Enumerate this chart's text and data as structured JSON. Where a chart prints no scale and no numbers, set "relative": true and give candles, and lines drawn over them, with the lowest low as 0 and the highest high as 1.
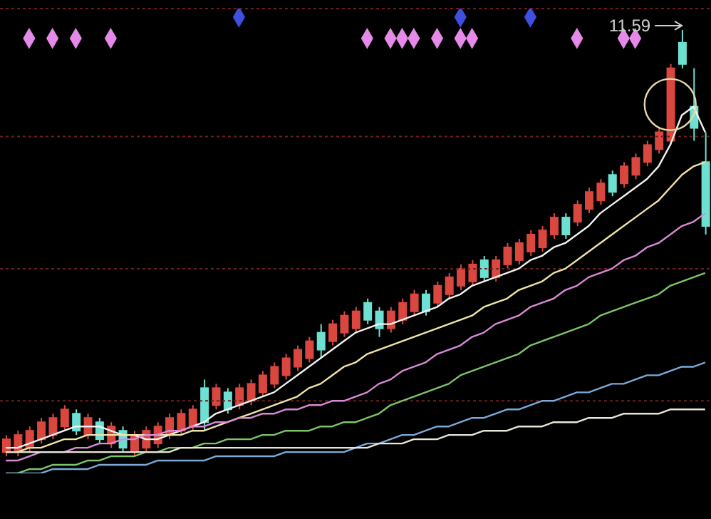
{
  "chart_data": {
    "type": "candlestick",
    "relative": true,
    "tick_labels": false,
    "categories": [
      null,
      null,
      null,
      null,
      null,
      null,
      null,
      null,
      null,
      null,
      null,
      null,
      null,
      null,
      null,
      null,
      null,
      null,
      null,
      null,
      null,
      null,
      null,
      null,
      null,
      null,
      null,
      null,
      null,
      null,
      null,
      null,
      null,
      null,
      null,
      null,
      null,
      null,
      null,
      null,
      null,
      null,
      null,
      null,
      null,
      null,
      null,
      null,
      null,
      null,
      null,
      null,
      null,
      null,
      null,
      null,
      null,
      null,
      null,
      null,
      null
    ],
    "ohlc": [
      [
        0.01,
        0.05,
        0.0,
        0.04
      ],
      [
        0.01,
        0.06,
        0.0,
        0.05
      ],
      [
        0.02,
        0.07,
        0.01,
        0.06
      ],
      [
        0.04,
        0.09,
        0.03,
        0.08
      ],
      [
        0.05,
        0.1,
        0.04,
        0.09
      ],
      [
        0.07,
        0.12,
        0.06,
        0.11
      ],
      [
        0.1,
        0.11,
        0.05,
        0.06
      ],
      [
        0.05,
        0.1,
        0.04,
        0.09
      ],
      [
        0.08,
        0.09,
        0.03,
        0.04
      ],
      [
        0.03,
        0.08,
        0.02,
        0.07
      ],
      [
        0.06,
        0.07,
        0.01,
        0.02
      ],
      [
        0.01,
        0.06,
        0.0,
        0.05
      ],
      [
        0.02,
        0.07,
        0.01,
        0.06
      ],
      [
        0.03,
        0.08,
        0.02,
        0.07
      ],
      [
        0.05,
        0.1,
        0.04,
        0.09
      ],
      [
        0.06,
        0.11,
        0.05,
        0.1
      ],
      [
        0.07,
        0.12,
        0.06,
        0.11
      ],
      [
        0.16,
        0.18,
        0.06,
        0.08
      ],
      [
        0.12,
        0.17,
        0.11,
        0.16
      ],
      [
        0.15,
        0.16,
        0.1,
        0.11
      ],
      [
        0.12,
        0.17,
        0.11,
        0.16
      ],
      [
        0.13,
        0.18,
        0.12,
        0.17
      ],
      [
        0.15,
        0.2,
        0.14,
        0.19
      ],
      [
        0.17,
        0.22,
        0.16,
        0.21
      ],
      [
        0.19,
        0.24,
        0.18,
        0.23
      ],
      [
        0.21,
        0.26,
        0.2,
        0.25
      ],
      [
        0.23,
        0.28,
        0.22,
        0.27
      ],
      [
        0.29,
        0.31,
        0.23,
        0.25
      ],
      [
        0.27,
        0.32,
        0.26,
        0.31
      ],
      [
        0.29,
        0.34,
        0.28,
        0.33
      ],
      [
        0.3,
        0.35,
        0.29,
        0.34
      ],
      [
        0.36,
        0.37,
        0.31,
        0.32
      ],
      [
        0.34,
        0.35,
        0.28,
        0.3
      ],
      [
        0.3,
        0.35,
        0.29,
        0.34
      ],
      [
        0.32,
        0.37,
        0.31,
        0.36
      ],
      [
        0.34,
        0.39,
        0.33,
        0.38
      ],
      [
        0.38,
        0.39,
        0.33,
        0.34
      ],
      [
        0.36,
        0.41,
        0.35,
        0.4
      ],
      [
        0.38,
        0.43,
        0.37,
        0.42
      ],
      [
        0.4,
        0.45,
        0.39,
        0.44
      ],
      [
        0.41,
        0.46,
        0.4,
        0.45
      ],
      [
        0.46,
        0.47,
        0.41,
        0.42
      ],
      [
        0.42,
        0.47,
        0.41,
        0.46
      ],
      [
        0.45,
        0.5,
        0.44,
        0.49
      ],
      [
        0.46,
        0.51,
        0.45,
        0.5
      ],
      [
        0.48,
        0.53,
        0.47,
        0.52
      ],
      [
        0.49,
        0.54,
        0.48,
        0.53
      ],
      [
        0.52,
        0.57,
        0.51,
        0.56
      ],
      [
        0.56,
        0.57,
        0.51,
        0.52
      ],
      [
        0.55,
        0.6,
        0.54,
        0.59
      ],
      [
        0.58,
        0.63,
        0.57,
        0.62
      ],
      [
        0.6,
        0.65,
        0.59,
        0.64
      ],
      [
        0.66,
        0.67,
        0.61,
        0.62
      ],
      [
        0.64,
        0.69,
        0.63,
        0.68
      ],
      [
        0.66,
        0.71,
        0.65,
        0.7
      ],
      [
        0.69,
        0.74,
        0.68,
        0.73
      ],
      [
        0.72,
        0.77,
        0.71,
        0.76
      ],
      [
        0.74,
        0.92,
        0.73,
        0.91
      ],
      [
        0.97,
        1.0,
        0.91,
        0.92
      ],
      [
        0.82,
        0.91,
        0.74,
        0.77
      ],
      [
        0.69,
        0.76,
        0.52,
        0.54
      ]
    ],
    "colors": [
      "#d9473f",
      "#d9473f",
      "#d9473f",
      "#d9473f",
      "#d9473f",
      "#d9473f",
      "#6ee0d2",
      "#d9473f",
      "#6ee0d2",
      "#d9473f",
      "#6ee0d2",
      "#d9473f",
      "#d9473f",
      "#d9473f",
      "#d9473f",
      "#d9473f",
      "#d9473f",
      "#6ee0d2",
      "#d9473f",
      "#6ee0d2",
      "#d9473f",
      "#d9473f",
      "#d9473f",
      "#d9473f",
      "#d9473f",
      "#d9473f",
      "#d9473f",
      "#6ee0d2",
      "#d9473f",
      "#d9473f",
      "#d9473f",
      "#6ee0d2",
      "#6ee0d2",
      "#d9473f",
      "#d9473f",
      "#d9473f",
      "#6ee0d2",
      "#d9473f",
      "#d9473f",
      "#d9473f",
      "#d9473f",
      "#6ee0d2",
      "#d9473f",
      "#d9473f",
      "#d9473f",
      "#d9473f",
      "#d9473f",
      "#d9473f",
      "#6ee0d2",
      "#d9473f",
      "#d9473f",
      "#d9473f",
      "#6ee0d2",
      "#d9473f",
      "#d9473f",
      "#d9473f",
      "#d9473f",
      "#d9473f",
      "#6ee0d2",
      "#6ee0d2",
      "#6ee0d2"
    ],
    "series": [
      {
        "type": "line",
        "color": "#f2f2f2",
        "values": [
          0.02,
          0.02,
          0.03,
          0.04,
          0.05,
          0.06,
          0.07,
          0.07,
          0.07,
          0.06,
          0.05,
          0.05,
          0.04,
          0.04,
          0.05,
          0.06,
          0.07,
          0.08,
          0.1,
          0.11,
          0.12,
          0.13,
          0.14,
          0.15,
          0.17,
          0.19,
          0.21,
          0.23,
          0.25,
          0.27,
          0.29,
          0.3,
          0.31,
          0.31,
          0.32,
          0.33,
          0.34,
          0.35,
          0.37,
          0.38,
          0.4,
          0.41,
          0.42,
          0.43,
          0.44,
          0.46,
          0.47,
          0.49,
          0.5,
          0.52,
          0.54,
          0.57,
          0.59,
          0.61,
          0.63,
          0.65,
          0.68,
          0.73,
          0.8,
          0.82,
          0.76
        ]
      },
      {
        "type": "line",
        "color": "#f0e4a8",
        "values": [
          0.01,
          0.01,
          0.02,
          0.02,
          0.03,
          0.04,
          0.04,
          0.05,
          0.05,
          0.05,
          0.05,
          0.05,
          0.05,
          0.05,
          0.05,
          0.05,
          0.06,
          0.06,
          0.07,
          0.08,
          0.09,
          0.1,
          0.11,
          0.12,
          0.13,
          0.14,
          0.16,
          0.17,
          0.19,
          0.21,
          0.22,
          0.24,
          0.25,
          0.26,
          0.27,
          0.28,
          0.29,
          0.3,
          0.31,
          0.32,
          0.33,
          0.35,
          0.36,
          0.37,
          0.39,
          0.4,
          0.41,
          0.43,
          0.44,
          0.46,
          0.48,
          0.5,
          0.52,
          0.54,
          0.56,
          0.58,
          0.6,
          0.63,
          0.66,
          0.68,
          0.69
        ]
      },
      {
        "type": "line",
        "color": "#d98ad6",
        "values": [
          -0.01,
          -0.01,
          0.0,
          0.01,
          0.01,
          0.01,
          0.02,
          0.02,
          0.03,
          0.03,
          0.04,
          0.04,
          0.05,
          0.05,
          0.06,
          0.06,
          0.07,
          0.07,
          0.08,
          0.08,
          0.09,
          0.09,
          0.1,
          0.1,
          0.11,
          0.11,
          0.12,
          0.12,
          0.13,
          0.13,
          0.14,
          0.15,
          0.17,
          0.18,
          0.2,
          0.21,
          0.22,
          0.24,
          0.25,
          0.26,
          0.28,
          0.29,
          0.31,
          0.32,
          0.33,
          0.35,
          0.36,
          0.37,
          0.39,
          0.4,
          0.42,
          0.43,
          0.44,
          0.46,
          0.47,
          0.49,
          0.5,
          0.52,
          0.54,
          0.55,
          0.57
        ]
      },
      {
        "type": "line",
        "color": "#7cc46a",
        "values": [
          -0.04,
          -0.04,
          -0.03,
          -0.03,
          -0.02,
          -0.02,
          -0.02,
          -0.01,
          -0.01,
          0.0,
          0.0,
          0.0,
          0.01,
          0.01,
          0.02,
          0.02,
          0.02,
          0.03,
          0.03,
          0.04,
          0.04,
          0.04,
          0.05,
          0.05,
          0.06,
          0.06,
          0.06,
          0.07,
          0.07,
          0.08,
          0.08,
          0.09,
          0.1,
          0.12,
          0.13,
          0.14,
          0.15,
          0.16,
          0.17,
          0.19,
          0.2,
          0.21,
          0.22,
          0.23,
          0.24,
          0.26,
          0.27,
          0.28,
          0.29,
          0.3,
          0.31,
          0.33,
          0.34,
          0.35,
          0.36,
          0.37,
          0.38,
          0.4,
          0.41,
          0.42,
          0.43
        ]
      },
      {
        "type": "line",
        "color": "#7aaad8",
        "values": [
          -0.04,
          -0.04,
          -0.04,
          -0.04,
          -0.03,
          -0.03,
          -0.03,
          -0.03,
          -0.02,
          -0.02,
          -0.02,
          -0.02,
          -0.02,
          -0.01,
          -0.01,
          -0.01,
          -0.01,
          -0.01,
          0.0,
          0.0,
          0.0,
          0.0,
          0.0,
          0.0,
          0.01,
          0.01,
          0.01,
          0.01,
          0.01,
          0.01,
          0.02,
          0.03,
          0.03,
          0.04,
          0.05,
          0.05,
          0.06,
          0.07,
          0.07,
          0.08,
          0.09,
          0.09,
          0.1,
          0.11,
          0.11,
          0.12,
          0.13,
          0.13,
          0.14,
          0.15,
          0.15,
          0.16,
          0.17,
          0.17,
          0.18,
          0.19,
          0.19,
          0.2,
          0.21,
          0.21,
          0.22
        ]
      },
      {
        "type": "line",
        "color": "#e8e6d6",
        "values": [
          0.01,
          0.01,
          0.01,
          0.01,
          0.01,
          0.01,
          0.01,
          0.01,
          0.01,
          0.01,
          0.01,
          0.01,
          0.01,
          0.01,
          0.01,
          0.02,
          0.02,
          0.02,
          0.02,
          0.02,
          0.02,
          0.02,
          0.02,
          0.02,
          0.02,
          0.02,
          0.02,
          0.02,
          0.02,
          0.02,
          0.02,
          0.02,
          0.03,
          0.03,
          0.03,
          0.04,
          0.04,
          0.04,
          0.05,
          0.05,
          0.05,
          0.06,
          0.06,
          0.06,
          0.07,
          0.07,
          0.07,
          0.08,
          0.08,
          0.08,
          0.09,
          0.09,
          0.09,
          0.1,
          0.1,
          0.1,
          0.1,
          0.11,
          0.11,
          0.11,
          0.11
        ]
      },
      {
        "type": "scatter",
        "color": "#e58ae8",
        "marker": "diamond",
        "values": [
          null,
          null,
          0.98,
          null,
          0.98,
          null,
          0.98,
          null,
          null,
          0.98,
          null,
          null,
          null,
          null,
          null,
          null,
          null,
          null,
          null,
          null,
          null,
          null,
          null,
          null,
          null,
          null,
          null,
          null,
          null,
          null,
          null,
          0.98,
          null,
          0.98,
          0.98,
          0.98,
          null,
          0.98,
          null,
          0.98,
          0.98,
          null,
          null,
          null,
          null,
          null,
          null,
          null,
          null,
          0.98,
          null,
          null,
          null,
          0.98,
          0.98,
          null,
          null,
          null,
          null,
          null,
          null
        ]
      },
      {
        "type": "scatter",
        "color": "#3f4fe0",
        "marker": "diamond",
        "values": [
          null,
          null,
          null,
          null,
          null,
          null,
          null,
          null,
          null,
          null,
          null,
          null,
          null,
          null,
          null,
          null,
          null,
          null,
          null,
          null,
          1.03,
          null,
          null,
          null,
          null,
          null,
          null,
          null,
          null,
          null,
          null,
          null,
          null,
          null,
          null,
          null,
          null,
          null,
          null,
          1.03,
          null,
          null,
          null,
          null,
          null,
          1.03,
          null,
          null,
          null,
          null,
          null,
          null,
          null,
          null,
          null,
          null,
          null,
          null,
          null,
          null,
          null
        ]
      }
    ],
    "ref_lines": [
      {
        "axis": "y",
        "value": 1.05,
        "color": "#6e1f1f",
        "line_style": "dotted"
      },
      {
        "axis": "y",
        "value": 0.75,
        "color": "#6e1f1f",
        "line_style": "dotted"
      },
      {
        "axis": "y",
        "value": 0.44,
        "color": "#6e1f1f",
        "line_style": "dotted"
      },
      {
        "axis": "y",
        "value": 0.13,
        "color": "#6e1f1f",
        "line_style": "dotted"
      }
    ],
    "annotations": [
      {
        "text": "11.59",
        "y": 1.0
      }
    ]
  }
}
